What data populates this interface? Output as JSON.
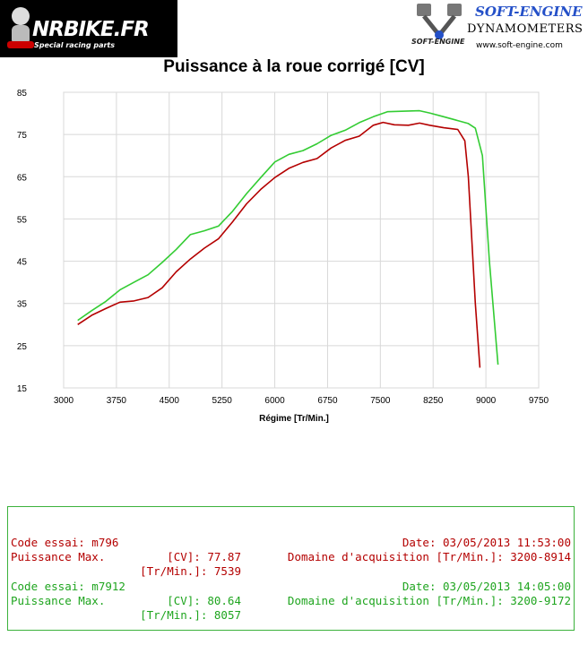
{
  "header": {
    "left_logo": "NRBIKE.FR",
    "left_tagline": "Special racing parts",
    "right_brand": "SOFT-ENGINE",
    "right_sub": "DYNAMOMETERS",
    "right_url": "www.soft-engine.com",
    "right_small": "SOFT-ENGINE"
  },
  "chart_data": {
    "type": "line",
    "title": "Puissance à la roue corrigé [CV]",
    "xlabel": "Régime [Tr/Min.]",
    "ylabel": "",
    "xlim": [
      3000,
      9750
    ],
    "ylim": [
      15,
      85
    ],
    "xticks": [
      3000,
      3750,
      4500,
      5250,
      6000,
      6750,
      7500,
      8250,
      9000,
      9750
    ],
    "yticks": [
      15,
      25,
      35,
      45,
      55,
      65,
      75,
      85
    ],
    "grid": true,
    "series": [
      {
        "name": "m796",
        "color": "#b40000",
        "x": [
          3200,
          3400,
          3600,
          3800,
          4000,
          4200,
          4400,
          4600,
          4800,
          5000,
          5200,
          5400,
          5600,
          5800,
          6000,
          6200,
          6400,
          6600,
          6800,
          7000,
          7200,
          7400,
          7539,
          7700,
          7900,
          8057,
          8200,
          8400,
          8600,
          8700,
          8750,
          8800,
          8850,
          8914
        ],
        "y": [
          30.0,
          32.2,
          33.8,
          35.3,
          35.6,
          36.4,
          38.7,
          42.5,
          45.5,
          48.1,
          50.3,
          54.3,
          58.6,
          62.0,
          64.8,
          67.0,
          68.4,
          69.3,
          71.8,
          73.6,
          74.6,
          77.2,
          77.87,
          77.3,
          77.2,
          77.7,
          77.2,
          76.6,
          76.2,
          73.5,
          65.0,
          50.0,
          35.0,
          19.8
        ]
      },
      {
        "name": "m7912",
        "color": "#33cc33",
        "x": [
          3200,
          3400,
          3600,
          3800,
          4000,
          4200,
          4400,
          4600,
          4800,
          5000,
          5200,
          5400,
          5600,
          5800,
          6000,
          6200,
          6400,
          6600,
          6800,
          7000,
          7200,
          7400,
          7600,
          7800,
          8057,
          8200,
          8400,
          8600,
          8750,
          8850,
          8950,
          9050,
          9172
        ],
        "y": [
          31.0,
          33.3,
          35.5,
          38.2,
          40.0,
          41.8,
          44.7,
          47.8,
          51.3,
          52.2,
          53.3,
          56.8,
          61.0,
          64.8,
          68.5,
          70.3,
          71.2,
          72.8,
          74.8,
          76.0,
          77.8,
          79.2,
          80.4,
          80.5,
          80.64,
          80.1,
          79.2,
          78.3,
          77.6,
          76.5,
          70.0,
          45.0,
          20.5
        ]
      }
    ]
  },
  "info": {
    "rows": [
      {
        "color": "red",
        "left": "Code essai: m796",
        "mid": "",
        "right": "Date: 03/05/2013 11:53:00"
      },
      {
        "color": "red",
        "left": "Puissance Max.",
        "mid": "[CV]: 77.87",
        "right": "Domaine d'acquisition [Tr/Min.]: 3200-8914"
      },
      {
        "color": "red",
        "left": "",
        "mid": "[Tr/Min.]: 7539",
        "right": ""
      },
      {
        "color": "green",
        "left": "Code essai: m7912",
        "mid": "",
        "right": "Date: 03/05/2013 14:05:00"
      },
      {
        "color": "green",
        "left": "Puissance Max.",
        "mid": "[CV]: 80.64",
        "right": "Domaine d'acquisition [Tr/Min.]: 3200-9172"
      },
      {
        "color": "green",
        "left": "",
        "mid": "[Tr/Min.]: 8057",
        "right": ""
      }
    ]
  }
}
